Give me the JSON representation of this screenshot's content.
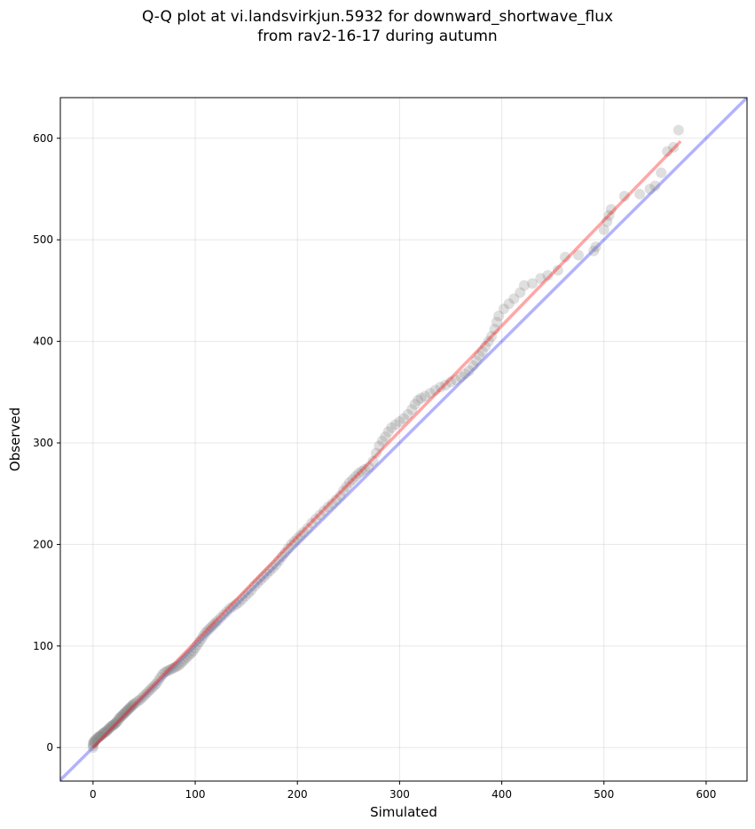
{
  "chart_data": {
    "type": "scatter",
    "title": [
      "Q-Q plot at vi.landsvirkjun.5932 for downward_shortwave_flux",
      "from rav2-16-17 during autumn"
    ],
    "xlabel": "Simulated",
    "ylabel": "Observed",
    "xlim": [
      -32,
      640
    ],
    "ylim": [
      -33,
      640
    ],
    "xticks": [
      0,
      100,
      200,
      300,
      400,
      500,
      600
    ],
    "yticks": [
      0,
      100,
      200,
      300,
      400,
      500,
      600
    ],
    "grid": true,
    "points": [
      [
        0,
        0
      ],
      [
        0,
        2
      ],
      [
        0,
        4
      ],
      [
        1,
        5
      ],
      [
        1,
        6
      ],
      [
        2,
        7
      ],
      [
        3,
        8
      ],
      [
        4,
        9
      ],
      [
        5,
        10
      ],
      [
        6,
        11
      ],
      [
        7,
        11
      ],
      [
        8,
        12
      ],
      [
        9,
        13
      ],
      [
        10,
        14
      ],
      [
        11,
        15
      ],
      [
        12,
        15
      ],
      [
        13,
        16
      ],
      [
        14,
        17
      ],
      [
        15,
        18
      ],
      [
        16,
        19
      ],
      [
        17,
        20
      ],
      [
        18,
        21
      ],
      [
        19,
        22
      ],
      [
        20,
        22
      ],
      [
        21,
        23
      ],
      [
        22,
        24
      ],
      [
        23,
        25
      ],
      [
        24,
        26
      ],
      [
        25,
        28
      ],
      [
        26,
        29
      ],
      [
        27,
        30
      ],
      [
        28,
        31
      ],
      [
        29,
        32
      ],
      [
        30,
        33
      ],
      [
        31,
        34
      ],
      [
        32,
        35
      ],
      [
        33,
        36
      ],
      [
        34,
        37
      ],
      [
        35,
        38
      ],
      [
        36,
        39
      ],
      [
        37,
        40
      ],
      [
        38,
        41
      ],
      [
        39,
        42
      ],
      [
        40,
        43
      ],
      [
        42,
        44
      ],
      [
        44,
        46
      ],
      [
        46,
        47
      ],
      [
        48,
        49
      ],
      [
        50,
        51
      ],
      [
        52,
        53
      ],
      [
        54,
        55
      ],
      [
        56,
        57
      ],
      [
        58,
        59
      ],
      [
        60,
        61
      ],
      [
        62,
        63
      ],
      [
        64,
        66
      ],
      [
        66,
        69
      ],
      [
        68,
        72
      ],
      [
        70,
        74
      ],
      [
        72,
        75
      ],
      [
        74,
        76
      ],
      [
        76,
        77
      ],
      [
        78,
        78
      ],
      [
        80,
        79
      ],
      [
        82,
        80
      ],
      [
        84,
        81
      ],
      [
        86,
        83
      ],
      [
        88,
        85
      ],
      [
        90,
        87
      ],
      [
        92,
        89
      ],
      [
        94,
        91
      ],
      [
        96,
        93
      ],
      [
        98,
        95
      ],
      [
        100,
        98
      ],
      [
        102,
        101
      ],
      [
        104,
        104
      ],
      [
        106,
        107
      ],
      [
        108,
        110
      ],
      [
        110,
        113
      ],
      [
        112,
        115
      ],
      [
        114,
        117
      ],
      [
        116,
        119
      ],
      [
        118,
        121
      ],
      [
        120,
        123
      ],
      [
        122,
        125
      ],
      [
        125,
        128
      ],
      [
        128,
        131
      ],
      [
        131,
        134
      ],
      [
        134,
        137
      ],
      [
        137,
        139
      ],
      [
        140,
        141
      ],
      [
        143,
        143
      ],
      [
        146,
        146
      ],
      [
        149,
        149
      ],
      [
        152,
        152
      ],
      [
        155,
        155
      ],
      [
        158,
        159
      ],
      [
        161,
        162
      ],
      [
        164,
        165
      ],
      [
        167,
        168
      ],
      [
        170,
        171
      ],
      [
        173,
        174
      ],
      [
        176,
        177
      ],
      [
        179,
        180
      ],
      [
        182,
        184
      ],
      [
        185,
        188
      ],
      [
        188,
        192
      ],
      [
        191,
        196
      ],
      [
        194,
        200
      ],
      [
        197,
        203
      ],
      [
        200,
        206
      ],
      [
        203,
        209
      ],
      [
        206,
        212
      ],
      [
        210,
        216
      ],
      [
        214,
        221
      ],
      [
        218,
        225
      ],
      [
        222,
        229
      ],
      [
        226,
        233
      ],
      [
        230,
        237
      ],
      [
        234,
        240
      ],
      [
        238,
        244
      ],
      [
        242,
        248
      ],
      [
        245,
        253
      ],
      [
        248,
        257
      ],
      [
        251,
        261
      ],
      [
        254,
        264
      ],
      [
        257,
        267
      ],
      [
        260,
        270
      ],
      [
        263,
        272
      ],
      [
        266,
        274
      ],
      [
        270,
        276
      ],
      [
        274,
        282
      ],
      [
        277,
        290
      ],
      [
        280,
        297
      ],
      [
        283,
        302
      ],
      [
        286,
        306
      ],
      [
        289,
        311
      ],
      [
        292,
        315
      ],
      [
        296,
        318
      ],
      [
        300,
        321
      ],
      [
        304,
        324
      ],
      [
        308,
        328
      ],
      [
        312,
        333
      ],
      [
        315,
        338
      ],
      [
        318,
        342
      ],
      [
        321,
        344
      ],
      [
        325,
        346
      ],
      [
        330,
        349
      ],
      [
        335,
        352
      ],
      [
        340,
        355
      ],
      [
        345,
        357
      ],
      [
        350,
        360
      ],
      [
        355,
        362
      ],
      [
        360,
        365
      ],
      [
        364,
        368
      ],
      [
        368,
        371
      ],
      [
        372,
        376
      ],
      [
        375,
        381
      ],
      [
        378,
        386
      ],
      [
        381,
        390
      ],
      [
        384,
        395
      ],
      [
        387,
        400
      ],
      [
        390,
        405
      ],
      [
        393,
        412
      ],
      [
        395,
        419
      ],
      [
        397,
        425
      ],
      [
        402,
        432
      ],
      [
        407,
        437
      ],
      [
        412,
        442
      ],
      [
        418,
        448
      ],
      [
        422,
        455
      ],
      [
        430,
        457
      ],
      [
        438,
        462
      ],
      [
        445,
        465
      ],
      [
        455,
        470
      ],
      [
        462,
        483
      ],
      [
        475,
        485
      ],
      [
        490,
        489
      ],
      [
        492,
        493
      ],
      [
        500,
        510
      ],
      [
        503,
        518
      ],
      [
        505,
        524
      ],
      [
        507,
        530
      ],
      [
        520,
        543
      ],
      [
        535,
        545
      ],
      [
        545,
        550
      ],
      [
        550,
        553
      ],
      [
        556,
        566
      ],
      [
        562,
        587
      ],
      [
        568,
        591
      ],
      [
        573,
        608
      ]
    ],
    "reference_line": {
      "name": "1:1",
      "color": "#0000ff",
      "alpha": 0.3
    },
    "fit_line": {
      "x": [
        0,
        575
      ],
      "y": [
        0,
        597
      ],
      "color": "#ff0000",
      "alpha": 0.35
    },
    "point_color": "#808080",
    "point_alpha": 0.25
  }
}
